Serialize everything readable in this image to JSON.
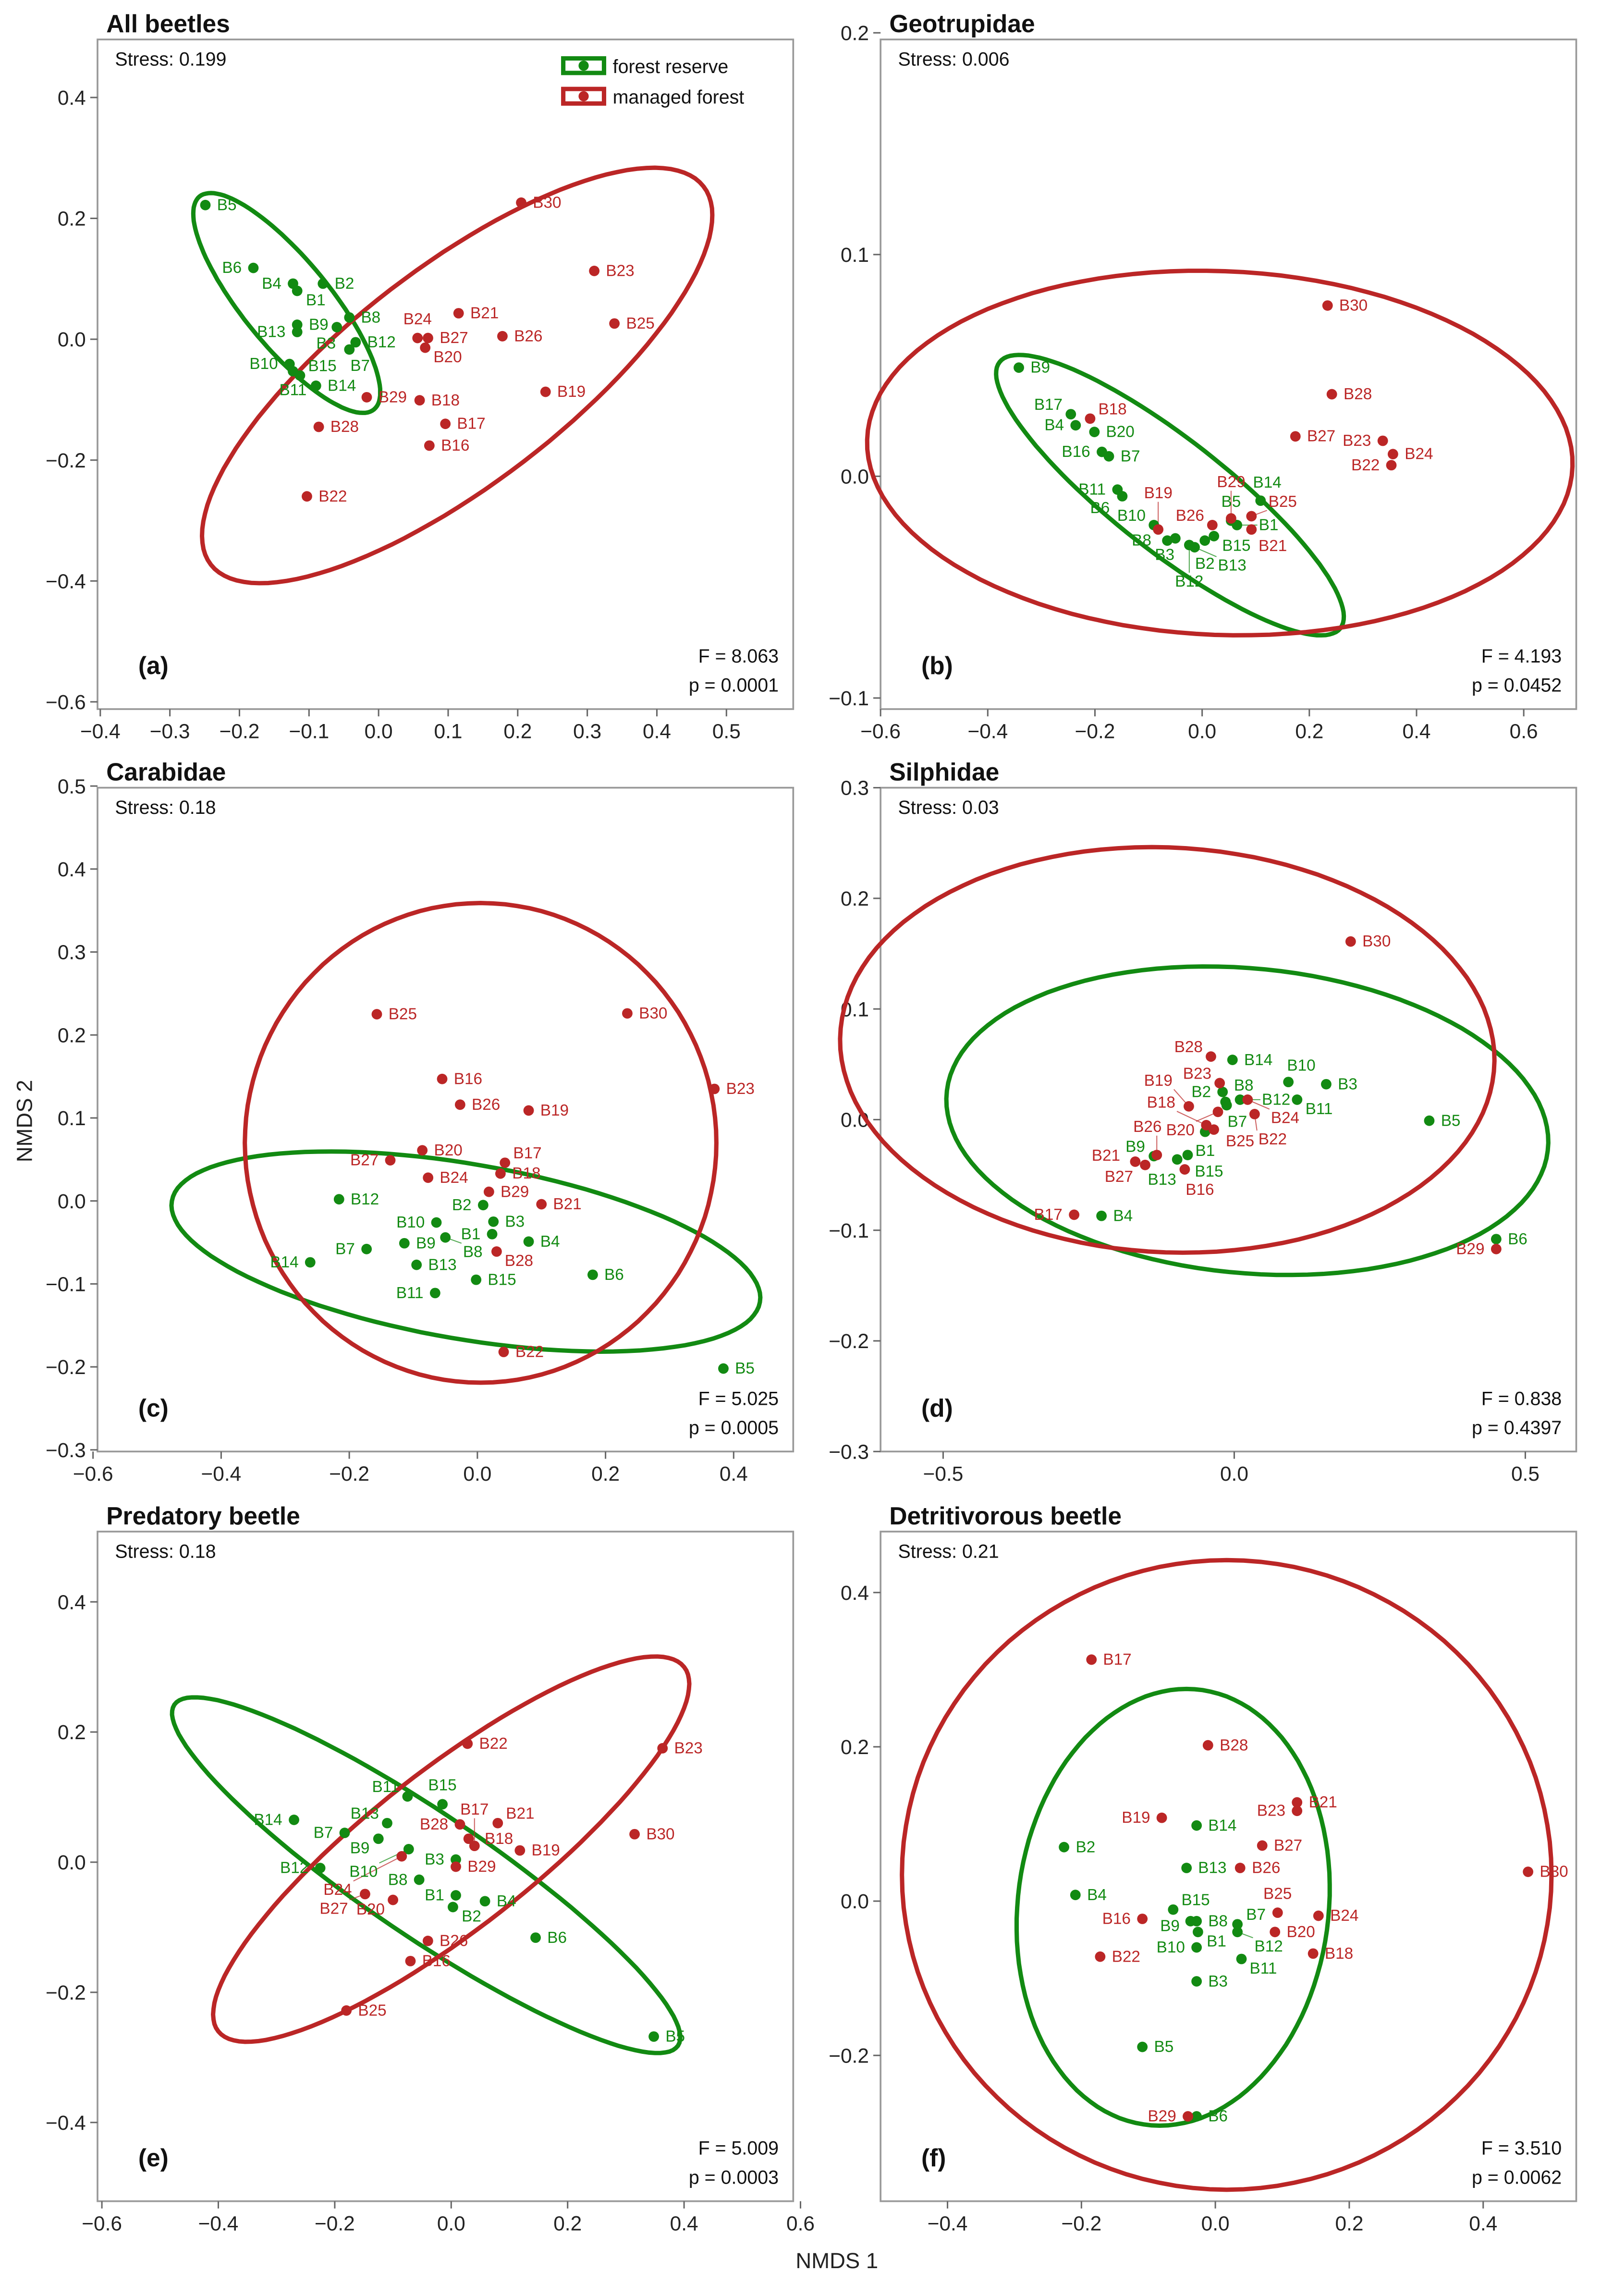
{
  "axis_labels": {
    "x": "NMDS 1",
    "y": "NMDS 2"
  },
  "legend": {
    "forest": "forest reserve",
    "managed": "managed forest"
  },
  "colors": {
    "forest": "#128a12",
    "managed": "#bb2626",
    "frame": "#999999"
  },
  "chart_data": [
    {
      "type": "scatter",
      "title": "All beetles",
      "letter": "(a)",
      "stress": "Stress: 0.199",
      "F": "F = 8.063",
      "p": "p = 0.0001",
      "xlim": [
        -0.404,
        0.596
      ],
      "ylim": [
        -0.612,
        0.496
      ],
      "xticks": [
        "−0.4",
        "−0.3",
        "−0.2",
        "−0.1",
        "0.0",
        "0.1",
        "0.2",
        "0.3",
        "0.4",
        "0.5"
      ],
      "yticks": [
        "0.4",
        "0.2",
        "0.0",
        "−0.2",
        "−0.4",
        "−0.6"
      ],
      "forest": [
        [
          "B5",
          -0.249,
          0.222
        ],
        [
          "B6",
          -0.18,
          0.118
        ],
        [
          "B4",
          -0.123,
          0.092
        ],
        [
          "B2",
          -0.08,
          0.092
        ],
        [
          "B1",
          -0.117,
          0.08
        ],
        [
          "B9",
          -0.117,
          0.024
        ],
        [
          "B13",
          -0.117,
          0.012
        ],
        [
          "B8",
          -0.042,
          0.036
        ],
        [
          "B3",
          -0.06,
          0.02
        ],
        [
          "B12",
          -0.033,
          -0.005
        ],
        [
          "B7",
          -0.042,
          -0.017
        ],
        [
          "B10",
          -0.128,
          -0.041
        ],
        [
          "B11",
          -0.123,
          -0.053
        ],
        [
          "B15",
          -0.113,
          -0.06
        ],
        [
          "B14",
          -0.09,
          -0.077
        ]
      ],
      "managed": [
        [
          "B30",
          0.205,
          0.226
        ],
        [
          "B23",
          0.31,
          0.113
        ],
        [
          "B25",
          0.339,
          0.026
        ],
        [
          "B21",
          0.115,
          0.043
        ],
        [
          "B26",
          0.178,
          0.005
        ],
        [
          "B24",
          0.056,
          0.002
        ],
        [
          "B27",
          0.071,
          0.002
        ],
        [
          "B20",
          0.067,
          -0.014
        ],
        [
          "B19",
          0.24,
          -0.087
        ],
        [
          "B18",
          0.059,
          -0.101
        ],
        [
          "B17",
          0.096,
          -0.14
        ],
        [
          "B16",
          0.073,
          -0.176
        ],
        [
          "B29",
          -0.017,
          -0.096
        ],
        [
          "B28",
          -0.086,
          -0.145
        ],
        [
          "B22",
          -0.103,
          -0.26
        ]
      ],
      "ellipse_forest": {
        "center": [
          -0.132,
          0.06
        ],
        "axis1": [
          0.1255,
          -0.176
        ],
        "axis2": [
          0.048,
          0.046
        ]
      },
      "ellipse_managed": {
        "center": [
          0.113,
          -0.06
        ],
        "axis1": [
          0.354,
          0.313
        ],
        "axis2": [
          0.096,
          -0.142
        ]
      }
    },
    {
      "type": "scatter",
      "title": "Geotrupidae",
      "letter": "(b)",
      "stress": "Stress: 0.006",
      "F": "F = 4.193",
      "p": "p = 0.0452",
      "xlim": [
        -0.6,
        0.698
      ],
      "ylim": [
        -0.105,
        0.197
      ],
      "xticks": [
        "−0.6",
        "−0.4",
        "−0.2",
        "0.0",
        "0.2",
        "0.4",
        "0.6"
      ],
      "yticks": [
        "0.2",
        "0.1",
        "0.0",
        "−0.1"
      ],
      "forest": [
        [
          "B9",
          -0.342,
          0.049
        ],
        [
          "B17",
          -0.245,
          0.028
        ],
        [
          "B4",
          -0.236,
          0.023
        ],
        [
          "B20",
          -0.201,
          0.02
        ],
        [
          "B16",
          -0.187,
          0.011
        ],
        [
          "B7",
          -0.174,
          0.009
        ],
        [
          "B11",
          -0.158,
          -0.006
        ],
        [
          "B6",
          -0.149,
          -0.009
        ],
        [
          "B10",
          -0.09,
          -0.022
        ],
        [
          "B3",
          -0.05,
          -0.028
        ],
        [
          "B8",
          -0.065,
          -0.029
        ],
        [
          "B12",
          -0.024,
          -0.031
        ],
        [
          "B2",
          0.005,
          -0.029
        ],
        [
          "B15",
          0.022,
          -0.027
        ],
        [
          "B13",
          -0.014,
          -0.032
        ],
        [
          "B5",
          0.054,
          -0.02
        ],
        [
          "B1",
          0.065,
          -0.022
        ],
        [
          "B14",
          0.109,
          -0.011
        ]
      ],
      "managed": [
        [
          "B18",
          -0.209,
          0.026
        ],
        [
          "B19",
          -0.082,
          -0.024
        ],
        [
          "B26",
          0.019,
          -0.022
        ],
        [
          "B29",
          0.054,
          -0.019
        ],
        [
          "B25",
          0.092,
          -0.018
        ],
        [
          "B21",
          0.092,
          -0.024
        ],
        [
          "B30",
          0.234,
          0.077
        ],
        [
          "B28",
          0.242,
          0.037
        ],
        [
          "B27",
          0.174,
          0.018
        ],
        [
          "B23",
          0.337,
          0.016
        ],
        [
          "B24",
          0.356,
          0.01
        ],
        [
          "B22",
          0.353,
          0.005
        ]
      ],
      "ellipse_forest": {
        "center": [
          -0.06,
          -0.0085
        ],
        "axis1": [
          0.318,
          -0.06
        ],
        "axis2": [
          -0.064,
          -0.02
        ]
      },
      "ellipse_managed": {
        "center": [
          0.033,
          0.0105
        ],
        "axis1": [
          0.658,
          -0.006
        ],
        "axis2": [
          0.01,
          0.082
        ]
      }
    },
    {
      "type": "scatter",
      "title": "Carabidae",
      "letter": "(c)",
      "stress": "Stress: 0.18",
      "F": "F = 5.025",
      "p": "p = 0.0005",
      "xlim": [
        -0.593,
        0.493
      ],
      "ylim": [
        -0.302,
        0.498
      ],
      "xticks": [
        "−0.6",
        "−0.4",
        "−0.2",
        "0.0",
        "0.2",
        "0.4"
      ],
      "yticks": [
        "0.5",
        "0.4",
        "0.3",
        "0.2",
        "0.1",
        "0.0",
        "−0.1",
        "−0.2",
        "−0.3"
      ],
      "forest": [
        [
          "B12",
          -0.216,
          0.002
        ],
        [
          "B14",
          -0.261,
          -0.074
        ],
        [
          "B7",
          -0.173,
          -0.058
        ],
        [
          "B9",
          -0.114,
          -0.051
        ],
        [
          "B13",
          -0.095,
          -0.077
        ],
        [
          "B11",
          -0.066,
          -0.111
        ],
        [
          "B8",
          -0.05,
          -0.044
        ],
        [
          "B10",
          -0.064,
          -0.026
        ],
        [
          "B2",
          0.009,
          -0.005
        ],
        [
          "B3",
          0.025,
          -0.025
        ],
        [
          "B1",
          0.023,
          -0.04
        ],
        [
          "B15",
          -0.002,
          -0.095
        ],
        [
          "B4",
          0.08,
          -0.049
        ],
        [
          "B6",
          0.18,
          -0.089
        ],
        [
          "B5",
          0.384,
          -0.202
        ]
      ],
      "managed": [
        [
          "B25",
          -0.157,
          0.225
        ],
        [
          "B30",
          0.234,
          0.226
        ],
        [
          "B23",
          0.37,
          0.135
        ],
        [
          "B16",
          -0.055,
          0.147
        ],
        [
          "B26",
          -0.027,
          0.116
        ],
        [
          "B19",
          0.08,
          0.109
        ],
        [
          "B20",
          -0.086,
          0.061
        ],
        [
          "B27",
          -0.136,
          0.049
        ],
        [
          "B24",
          -0.077,
          0.028
        ],
        [
          "B17",
          0.043,
          0.046
        ],
        [
          "B18",
          0.036,
          0.033
        ],
        [
          "B29",
          0.018,
          0.011
        ],
        [
          "B21",
          0.1,
          -0.004
        ],
        [
          "B28",
          0.03,
          -0.061
        ],
        [
          "B22",
          0.041,
          -0.182
        ]
      ],
      "ellipse_forest": {
        "center": [
          -0.018,
          -0.061
        ],
        "axis1": [
          0.459,
          -0.061
        ],
        "axis2": [
          -0.023,
          -0.104
        ]
      },
      "ellipse_managed": {
        "center": [
          0.005,
          0.07
        ],
        "axis1": [
          0.368,
          0.0
        ],
        "axis2": [
          0.0,
          0.289
        ]
      }
    },
    {
      "type": "scatter",
      "title": "Silphidae",
      "letter": "(d)",
      "stress": "Stress: 0.03",
      "F": "F = 0.838",
      "p": "p = 0.4397",
      "xlim": [
        -0.6075,
        0.5875
      ],
      "ylim": [
        -0.3,
        0.3
      ],
      "xticks": [
        "−0.5",
        "0.0",
        "0.5"
      ],
      "yticks": [
        "0.3",
        "0.2",
        "0.1",
        "0.0",
        "−0.1",
        "−0.2",
        "−0.3"
      ],
      "forest": [
        [
          "B14",
          -0.003,
          0.054
        ],
        [
          "B10",
          0.093,
          0.034
        ],
        [
          "B3",
          0.158,
          0.032
        ],
        [
          "B11",
          0.108,
          0.018
        ],
        [
          "B2",
          -0.02,
          0.025
        ],
        [
          "B8",
          -0.015,
          0.016
        ],
        [
          "B7",
          -0.013,
          0.013
        ],
        [
          "B12",
          0.01,
          0.018
        ],
        [
          "B1",
          -0.05,
          -0.011
        ],
        [
          "B9",
          -0.138,
          -0.033
        ],
        [
          "B15",
          -0.08,
          -0.032
        ],
        [
          "B13",
          -0.098,
          -0.036
        ],
        [
          "B5",
          0.335,
          -0.001
        ],
        [
          "B4",
          -0.228,
          -0.087
        ],
        [
          "B6",
          0.45,
          -0.108
        ]
      ],
      "managed": [
        [
          "B28",
          -0.04,
          0.057
        ],
        [
          "B23",
          -0.025,
          0.033
        ],
        [
          "B24",
          0.023,
          0.018
        ],
        [
          "B22",
          0.035,
          0.005
        ],
        [
          "B19",
          -0.078,
          0.012
        ],
        [
          "B18",
          -0.048,
          -0.005
        ],
        [
          "B20",
          -0.028,
          0.007
        ],
        [
          "B25",
          -0.035,
          -0.009
        ],
        [
          "B26",
          -0.133,
          -0.032
        ],
        [
          "B21",
          -0.17,
          -0.038
        ],
        [
          "B27",
          -0.153,
          -0.041
        ],
        [
          "B16",
          -0.085,
          -0.045
        ],
        [
          "B30",
          0.2,
          0.161
        ],
        [
          "B17",
          -0.275,
          -0.086
        ],
        [
          "B29",
          0.45,
          -0.117
        ]
      ],
      "ellipse_forest": {
        "center": [
          0.0225,
          -0.001
        ],
        "axis1": [
          0.517,
          -0.02
        ],
        "axis2": [
          0.004,
          0.138
        ]
      },
      "ellipse_managed": {
        "center": [
          -0.115,
          0.063
        ],
        "axis1": [
          0.562,
          -0.01
        ],
        "axis2": [
          0.003,
          0.183
        ]
      }
    },
    {
      "type": "scatter",
      "title": "Predatory beetle",
      "letter": "(e)",
      "stress": "Stress: 0.18",
      "F": "F = 5.009",
      "p": "p = 0.0003",
      "xlim": [
        -0.6075,
        0.5875
      ],
      "ylim": [
        -0.521,
        0.508
      ],
      "xticks": [
        "−0.6",
        "−0.4",
        "−0.2",
        "0.0",
        "0.2",
        "0.4",
        "0.6"
      ],
      "yticks": [
        "0.4",
        "0.2",
        "0.0",
        "−0.2",
        "−0.4"
      ],
      "forest": [
        [
          "B14",
          -0.27,
          0.065
        ],
        [
          "B7",
          -0.183,
          0.045
        ],
        [
          "B13",
          -0.11,
          0.06
        ],
        [
          "B9",
          -0.125,
          0.036
        ],
        [
          "B10",
          -0.073,
          0.02
        ],
        [
          "B11",
          -0.075,
          0.101
        ],
        [
          "B15",
          -0.015,
          0.089
        ],
        [
          "B12",
          -0.225,
          -0.009
        ],
        [
          "B3",
          0.008,
          0.004
        ],
        [
          "B8",
          -0.055,
          -0.027
        ],
        [
          "B1",
          0.008,
          -0.051
        ],
        [
          "B2",
          0.003,
          -0.069
        ],
        [
          "B4",
          0.058,
          -0.06
        ],
        [
          "B6",
          0.145,
          -0.116
        ],
        [
          "B5",
          0.348,
          -0.268
        ]
      ],
      "managed": [
        [
          "B22",
          0.028,
          0.182
        ],
        [
          "B23",
          0.363,
          0.175
        ],
        [
          "B30",
          0.315,
          0.043
        ],
        [
          "B28",
          0.015,
          0.058
        ],
        [
          "B21",
          0.08,
          0.06
        ],
        [
          "B18",
          0.03,
          0.036
        ],
        [
          "B17",
          0.04,
          0.025
        ],
        [
          "B19",
          0.118,
          0.018
        ],
        [
          "B24",
          -0.085,
          0.009
        ],
        [
          "B29",
          0.008,
          -0.007
        ],
        [
          "B27",
          -0.148,
          -0.049
        ],
        [
          "B20",
          -0.1,
          -0.058
        ],
        [
          "B26",
          -0.04,
          -0.121
        ],
        [
          "B16",
          -0.07,
          -0.152
        ],
        [
          "B25",
          -0.18,
          -0.228
        ]
      ],
      "ellipse_forest": {
        "center": [
          -0.043,
          -0.02
        ],
        "axis1": [
          0.4325,
          -0.262
        ],
        "axis2": [
          -0.059,
          -0.078
        ]
      },
      "ellipse_managed": {
        "center": [
          0.0,
          0.02
        ],
        "axis1": [
          0.4,
          0.28
        ],
        "axis2": [
          0.085,
          -0.096
        ]
      }
    },
    {
      "type": "scatter",
      "title": "Detritivorous beetle",
      "letter": "(f)",
      "stress": "Stress: 0.21",
      "F": "F = 3.510",
      "p": "p = 0.0062",
      "xlim": [
        -0.5,
        0.539
      ],
      "ylim": [
        -0.389,
        0.479
      ],
      "xticks": [
        "−0.4",
        "−0.2",
        "0.0",
        "0.2",
        "0.4"
      ],
      "yticks": [
        "0.4",
        "0.2",
        "0.0",
        "−0.2"
      ],
      "forest": [
        [
          "B2",
          -0.226,
          0.07
        ],
        [
          "B4",
          -0.209,
          0.008
        ],
        [
          "B14",
          -0.028,
          0.098
        ],
        [
          "B13",
          -0.043,
          0.043
        ],
        [
          "B15",
          -0.063,
          -0.011
        ],
        [
          "B9",
          -0.037,
          -0.026
        ],
        [
          "B8",
          -0.028,
          -0.026
        ],
        [
          "B7",
          0.033,
          -0.03
        ],
        [
          "B1",
          -0.026,
          -0.04
        ],
        [
          "B12",
          0.033,
          -0.04
        ],
        [
          "B10",
          -0.028,
          -0.06
        ],
        [
          "B11",
          0.039,
          -0.075
        ],
        [
          "B3",
          -0.028,
          -0.104
        ],
        [
          "B5",
          -0.109,
          -0.189
        ],
        [
          "B6",
          -0.028,
          -0.279
        ]
      ],
      "managed": [
        [
          "B17",
          -0.185,
          0.313
        ],
        [
          "B28",
          -0.011,
          0.202
        ],
        [
          "B21",
          0.122,
          0.128
        ],
        [
          "B23",
          0.122,
          0.117
        ],
        [
          "B19",
          -0.08,
          0.108
        ],
        [
          "B27",
          0.07,
          0.072
        ],
        [
          "B26",
          0.037,
          0.043
        ],
        [
          "B25",
          0.093,
          -0.015
        ],
        [
          "B24",
          0.154,
          -0.019
        ],
        [
          "B16",
          -0.109,
          -0.023
        ],
        [
          "B20",
          0.089,
          -0.04
        ],
        [
          "B18",
          0.146,
          -0.068
        ],
        [
          "B22",
          -0.172,
          -0.072
        ],
        [
          "B29",
          -0.041,
          -0.279
        ],
        [
          "B30",
          0.467,
          0.038
        ]
      ],
      "ellipse_forest": {
        "center": [
          -0.063,
          -0.008
        ],
        "axis1": [
          0.02,
          0.283
        ],
        "axis2": [
          0.233,
          0.0
        ]
      },
      "ellipse_managed": {
        "center": [
          0.017,
          0.034
        ],
        "axis1": [
          0.485,
          0.0
        ],
        "axis2": [
          0.0,
          0.408
        ]
      }
    }
  ]
}
